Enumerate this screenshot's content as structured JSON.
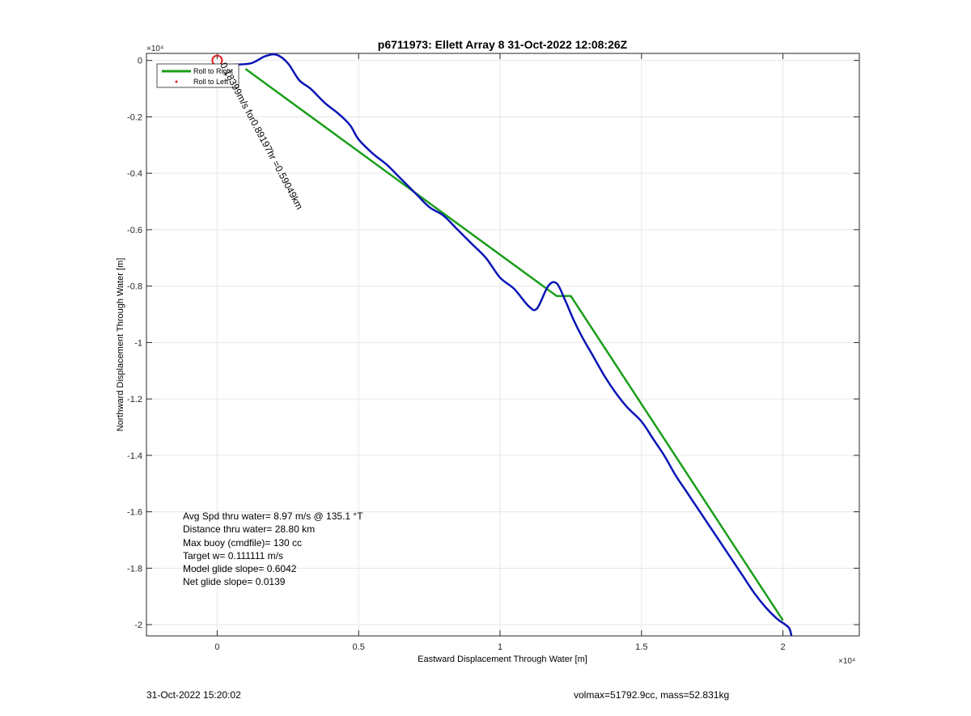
{
  "chart_data": {
    "type": "line",
    "title": "p6711973: Ellett Array 8 31-Oct-2022 12:08:26Z",
    "xlabel": "Eastward Displacement Through Water [m]",
    "ylabel": "Northward Displacement Through Water [m]",
    "x_exponent_label": "×10⁴",
    "y_exponent_label": "×10⁴",
    "xlim": [
      -2500,
      22700
    ],
    "ylim": [
      -20400,
      250
    ],
    "xticks": [
      0,
      5000,
      10000,
      15000,
      20000
    ],
    "xtick_labels": [
      "0",
      "0.5",
      "1",
      "1.5",
      "2"
    ],
    "yticks": [
      0,
      -2000,
      -4000,
      -6000,
      -8000,
      -10000,
      -12000,
      -14000,
      -16000,
      -18000,
      -20000
    ],
    "ytick_labels": [
      "0",
      "-0.2",
      "-0.4",
      "-0.6",
      "-0.8",
      "-1",
      "-1.2",
      "-1.4",
      "-1.6",
      "-1.8",
      "-2"
    ],
    "grid": true,
    "legend_position": "top-left",
    "series": [
      {
        "name": "Roll to Right",
        "color": "#1a9e1a",
        "x": [
          1000,
          12000,
          12500,
          20000
        ],
        "y": [
          -300,
          -8350,
          -8350,
          -19850
        ]
      },
      {
        "name": "Roll to Left",
        "color": "#e02020",
        "x": [
          0
        ],
        "y": [
          0
        ]
      },
      {
        "name": "",
        "color": "#0a14b4",
        "x": [
          0,
          600,
          1200,
          1700,
          2100,
          2500,
          2900,
          3300,
          3800,
          4300,
          4700,
          5000,
          5500,
          6000,
          6500,
          7000,
          7500,
          8000,
          8500,
          9000,
          9500,
          10000,
          10500,
          11000,
          11300,
          11700,
          12000,
          12300,
          12600,
          12900,
          13300,
          13700,
          14100,
          14500,
          15000,
          15400,
          15800,
          16200,
          16600,
          17000,
          17400,
          17800,
          18200,
          18600,
          19000,
          19400,
          19800,
          20200,
          20300
        ],
        "y": [
          -200,
          -150,
          -100,
          150,
          200,
          -100,
          -700,
          -1000,
          -1500,
          -1900,
          -2300,
          -2800,
          -3300,
          -3700,
          -4200,
          -4700,
          -5200,
          -5500,
          -6000,
          -6500,
          -7000,
          -7700,
          -8100,
          -8700,
          -8800,
          -8000,
          -7900,
          -8500,
          -9200,
          -9800,
          -10500,
          -11200,
          -11800,
          -12300,
          -12800,
          -13400,
          -14000,
          -14700,
          -15300,
          -15900,
          -16500,
          -17100,
          -17700,
          -18300,
          -18900,
          -19400,
          -19800,
          -20100,
          -20400
        ]
      }
    ],
    "annotations": [
      {
        "text": "0.18399m/s for0.89197hr =0.59049km",
        "x": 100,
        "y": -150,
        "rotation_deg": 62
      }
    ]
  },
  "stats": [
    "Avg Spd thru water=  8.97 m/s @ 135.1 °T",
    "Distance thru water= 28.80 km",
    "Max buoy (cmdfile)= 130 cc",
    "Target w= 0.111111 m/s",
    "Model glide slope= 0.6042",
    "Net glide slope= 0.0139"
  ],
  "footer": {
    "timestamp": "31-Oct-2022 15:20:02",
    "summary": "volmax=51792.9cc, mass=52.831kg"
  }
}
